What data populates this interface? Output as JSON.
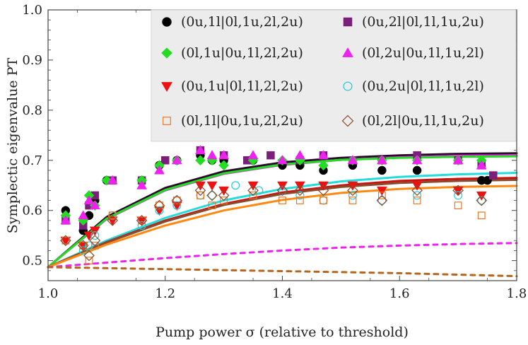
{
  "chart_data": {
    "type": "scatter",
    "xlabel": "Pump power σ (relative to threshold)",
    "ylabel": "Symplectic eigenvalue PT",
    "xlim": [
      1.0,
      1.8
    ],
    "ylim": [
      0.46,
      1.0
    ],
    "xticks": [
      "1.0",
      "1.2",
      "1.4",
      "1.6",
      "1.8"
    ],
    "yticks": [
      "0.5",
      "0.6",
      "0.7",
      "0.8",
      "0.9",
      "1.0"
    ],
    "grid": false,
    "legend_position": "top-right",
    "series": [
      {
        "name": "(0u,1l|0l,1u,2l,2u)",
        "marker": "circle",
        "filled": true,
        "color": "#000000",
        "points": [
          [
            1.03,
            0.6
          ],
          [
            1.06,
            0.56
          ],
          [
            1.07,
            0.59
          ],
          [
            1.08,
            0.62
          ],
          [
            1.1,
            0.66
          ],
          [
            1.16,
            0.66
          ],
          [
            1.19,
            0.69
          ],
          [
            1.22,
            0.7
          ],
          [
            1.26,
            0.71
          ],
          [
            1.28,
            0.7
          ],
          [
            1.3,
            0.7
          ],
          [
            1.35,
            0.7
          ],
          [
            1.4,
            0.69
          ],
          [
            1.43,
            0.69
          ],
          [
            1.47,
            0.68
          ],
          [
            1.52,
            0.69
          ],
          [
            1.57,
            0.68
          ],
          [
            1.63,
            0.68
          ],
          [
            1.74,
            0.66
          ],
          [
            1.75,
            0.66
          ]
        ]
      },
      {
        "name": "(0u,2l|0l,1l,1u,2u)",
        "marker": "square",
        "filled": true,
        "color": "#7B1F7B",
        "points": [
          [
            1.03,
            0.58
          ],
          [
            1.06,
            0.57
          ],
          [
            1.07,
            0.61
          ],
          [
            1.08,
            0.63
          ],
          [
            1.11,
            0.66
          ],
          [
            1.16,
            0.66
          ],
          [
            1.2,
            0.7
          ],
          [
            1.26,
            0.72
          ],
          [
            1.3,
            0.71
          ],
          [
            1.34,
            0.7
          ],
          [
            1.38,
            0.71
          ],
          [
            1.43,
            0.7
          ],
          [
            1.47,
            0.71
          ],
          [
            1.52,
            0.7
          ],
          [
            1.57,
            0.7
          ],
          [
            1.63,
            0.71
          ],
          [
            1.7,
            0.7
          ],
          [
            1.74,
            0.69
          ],
          [
            1.76,
            0.67
          ]
        ]
      },
      {
        "name": "(0l,1u|0u,1l,2l,2u)",
        "marker": "diamond",
        "filled": true,
        "color": "#22DD22",
        "points": [
          [
            1.03,
            0.59
          ],
          [
            1.06,
            0.58
          ],
          [
            1.07,
            0.63
          ],
          [
            1.08,
            0.61
          ],
          [
            1.1,
            0.66
          ],
          [
            1.16,
            0.66
          ],
          [
            1.19,
            0.69
          ],
          [
            1.22,
            0.7
          ],
          [
            1.26,
            0.7
          ],
          [
            1.28,
            0.7
          ],
          [
            1.3,
            0.69
          ],
          [
            1.35,
            0.7
          ],
          [
            1.4,
            0.7
          ],
          [
            1.43,
            0.7
          ],
          [
            1.47,
            0.69
          ],
          [
            1.52,
            0.7
          ],
          [
            1.57,
            0.7
          ],
          [
            1.63,
            0.7
          ],
          [
            1.7,
            0.7
          ],
          [
            1.74,
            0.7
          ]
        ]
      },
      {
        "name": "(0l,2u|0u,1l,1u,2l)",
        "marker": "triangle-up",
        "filled": true,
        "color": "#EE22EE",
        "points": [
          [
            1.03,
            0.58
          ],
          [
            1.06,
            0.59
          ],
          [
            1.07,
            0.62
          ],
          [
            1.08,
            0.61
          ],
          [
            1.11,
            0.66
          ],
          [
            1.16,
            0.65
          ],
          [
            1.19,
            0.68
          ],
          [
            1.22,
            0.7
          ],
          [
            1.26,
            0.72
          ],
          [
            1.28,
            0.71
          ],
          [
            1.3,
            0.71
          ],
          [
            1.35,
            0.71
          ],
          [
            1.4,
            0.7
          ],
          [
            1.43,
            0.71
          ],
          [
            1.47,
            0.71
          ],
          [
            1.52,
            0.7
          ],
          [
            1.57,
            0.7
          ],
          [
            1.63,
            0.7
          ],
          [
            1.7,
            0.7
          ],
          [
            1.74,
            0.69
          ]
        ]
      },
      {
        "name": "(0u,1u|0l,1l,2l,2u)",
        "marker": "triangle-down",
        "filled": true,
        "color": "#EE1111",
        "points": [
          [
            1.03,
            0.54
          ],
          [
            1.06,
            0.53
          ],
          [
            1.07,
            0.55
          ],
          [
            1.08,
            0.56
          ],
          [
            1.11,
            0.58
          ],
          [
            1.16,
            0.58
          ],
          [
            1.19,
            0.6
          ],
          [
            1.22,
            0.61
          ],
          [
            1.26,
            0.65
          ],
          [
            1.28,
            0.65
          ],
          [
            1.3,
            0.64
          ],
          [
            1.35,
            0.65
          ],
          [
            1.4,
            0.65
          ],
          [
            1.43,
            0.65
          ],
          [
            1.47,
            0.65
          ],
          [
            1.52,
            0.65
          ],
          [
            1.57,
            0.64
          ],
          [
            1.63,
            0.65
          ],
          [
            1.7,
            0.64
          ],
          [
            1.74,
            0.63
          ]
        ]
      },
      {
        "name": "(0u,2u|0l,1l,1u,2l)",
        "marker": "circle",
        "filled": false,
        "color": "#22CCDD",
        "points": [
          [
            1.03,
            0.54
          ],
          [
            1.06,
            0.52
          ],
          [
            1.07,
            0.53
          ],
          [
            1.08,
            0.55
          ],
          [
            1.11,
            0.59
          ],
          [
            1.16,
            0.57
          ],
          [
            1.19,
            0.6
          ],
          [
            1.22,
            0.61
          ],
          [
            1.26,
            0.63
          ],
          [
            1.28,
            0.63
          ],
          [
            1.32,
            0.65
          ],
          [
            1.36,
            0.64
          ],
          [
            1.4,
            0.64
          ],
          [
            1.43,
            0.63
          ],
          [
            1.47,
            0.62
          ],
          [
            1.52,
            0.63
          ],
          [
            1.57,
            0.62
          ],
          [
            1.63,
            0.63
          ],
          [
            1.7,
            0.63
          ],
          [
            1.74,
            0.62
          ]
        ]
      },
      {
        "name": "(0l,1l|0u,1u,2l,2u)",
        "marker": "square",
        "filled": false,
        "color": "#EE7722",
        "points": [
          [
            1.03,
            0.54
          ],
          [
            1.06,
            0.53
          ],
          [
            1.07,
            0.5
          ],
          [
            1.08,
            0.53
          ],
          [
            1.11,
            0.59
          ],
          [
            1.16,
            0.58
          ],
          [
            1.19,
            0.61
          ],
          [
            1.22,
            0.62
          ],
          [
            1.26,
            0.63
          ],
          [
            1.28,
            0.61
          ],
          [
            1.3,
            0.62
          ],
          [
            1.35,
            0.63
          ],
          [
            1.4,
            0.62
          ],
          [
            1.43,
            0.62
          ],
          [
            1.47,
            0.62
          ],
          [
            1.52,
            0.62
          ],
          [
            1.57,
            0.63
          ],
          [
            1.63,
            0.62
          ],
          [
            1.7,
            0.61
          ],
          [
            1.74,
            0.59
          ]
        ]
      },
      {
        "name": "(0l,2l|0u,1l,1u,2u)",
        "marker": "diamond",
        "filled": false,
        "color": "#8B4A2B",
        "points": [
          [
            1.03,
            0.54
          ],
          [
            1.06,
            0.53
          ],
          [
            1.07,
            0.51
          ],
          [
            1.08,
            0.54
          ],
          [
            1.11,
            0.58
          ],
          [
            1.16,
            0.58
          ],
          [
            1.19,
            0.61
          ],
          [
            1.22,
            0.62
          ],
          [
            1.26,
            0.64
          ],
          [
            1.28,
            0.63
          ],
          [
            1.3,
            0.63
          ],
          [
            1.35,
            0.64
          ],
          [
            1.4,
            0.64
          ],
          [
            1.43,
            0.64
          ],
          [
            1.47,
            0.64
          ],
          [
            1.52,
            0.64
          ],
          [
            1.57,
            0.62
          ],
          [
            1.63,
            0.64
          ],
          [
            1.7,
            0.64
          ],
          [
            1.74,
            0.62
          ]
        ]
      }
    ],
    "curves": [
      {
        "style": "solid",
        "color": "#2A0A2A",
        "points": [
          [
            1.0,
            0.487
          ],
          [
            1.1,
            0.587
          ],
          [
            1.2,
            0.645
          ],
          [
            1.3,
            0.678
          ],
          [
            1.4,
            0.696
          ],
          [
            1.5,
            0.705
          ],
          [
            1.6,
            0.71
          ],
          [
            1.7,
            0.713
          ],
          [
            1.8,
            0.714
          ]
        ]
      },
      {
        "style": "solid",
        "color": "#EE22EE",
        "points": [
          [
            1.0,
            0.487
          ],
          [
            1.1,
            0.583
          ],
          [
            1.2,
            0.64
          ],
          [
            1.3,
            0.673
          ],
          [
            1.4,
            0.691
          ],
          [
            1.5,
            0.701
          ],
          [
            1.6,
            0.706
          ],
          [
            1.7,
            0.709
          ],
          [
            1.8,
            0.71
          ]
        ]
      },
      {
        "style": "solid",
        "color": "#22DD22",
        "points": [
          [
            1.0,
            0.487
          ],
          [
            1.1,
            0.584
          ],
          [
            1.2,
            0.641
          ],
          [
            1.3,
            0.674
          ],
          [
            1.4,
            0.692
          ],
          [
            1.5,
            0.701
          ],
          [
            1.6,
            0.705
          ],
          [
            1.7,
            0.707
          ],
          [
            1.8,
            0.708
          ]
        ]
      },
      {
        "style": "solid",
        "color": "#22DDDD",
        "points": [
          [
            1.0,
            0.487
          ],
          [
            1.1,
            0.54
          ],
          [
            1.2,
            0.585
          ],
          [
            1.3,
            0.62
          ],
          [
            1.4,
            0.643
          ],
          [
            1.5,
            0.658
          ],
          [
            1.6,
            0.667
          ],
          [
            1.7,
            0.672
          ],
          [
            1.8,
            0.675
          ]
        ]
      },
      {
        "style": "solid",
        "color": "#CC1111",
        "points": [
          [
            1.0,
            0.487
          ],
          [
            1.1,
            0.537
          ],
          [
            1.2,
            0.58
          ],
          [
            1.3,
            0.613
          ],
          [
            1.4,
            0.636
          ],
          [
            1.5,
            0.65
          ],
          [
            1.6,
            0.659
          ],
          [
            1.7,
            0.663
          ],
          [
            1.8,
            0.665
          ]
        ]
      },
      {
        "style": "solid",
        "color": "#8B4A2B",
        "points": [
          [
            1.0,
            0.487
          ],
          [
            1.1,
            0.536
          ],
          [
            1.2,
            0.578
          ],
          [
            1.3,
            0.611
          ],
          [
            1.4,
            0.633
          ],
          [
            1.5,
            0.647
          ],
          [
            1.6,
            0.655
          ],
          [
            1.7,
            0.659
          ],
          [
            1.8,
            0.661
          ]
        ]
      },
      {
        "style": "solid",
        "color": "#FF8811",
        "points": [
          [
            1.0,
            0.487
          ],
          [
            1.1,
            0.532
          ],
          [
            1.2,
            0.57
          ],
          [
            1.3,
            0.6
          ],
          [
            1.4,
            0.621
          ],
          [
            1.5,
            0.635
          ],
          [
            1.6,
            0.643
          ],
          [
            1.7,
            0.647
          ],
          [
            1.8,
            0.649
          ]
        ]
      },
      {
        "style": "dashed",
        "color": "#EE22EE",
        "points": [
          [
            1.0,
            0.487
          ],
          [
            1.1,
            0.496
          ],
          [
            1.2,
            0.505
          ],
          [
            1.3,
            0.513
          ],
          [
            1.4,
            0.52
          ],
          [
            1.5,
            0.526
          ],
          [
            1.6,
            0.53
          ],
          [
            1.7,
            0.533
          ],
          [
            1.8,
            0.535
          ]
        ]
      },
      {
        "style": "dashed",
        "color": "#B5651D",
        "points": [
          [
            1.0,
            0.487
          ],
          [
            1.1,
            0.485
          ],
          [
            1.2,
            0.483
          ],
          [
            1.3,
            0.481
          ],
          [
            1.4,
            0.479
          ],
          [
            1.5,
            0.477
          ],
          [
            1.6,
            0.475
          ],
          [
            1.7,
            0.472
          ],
          [
            1.8,
            0.469
          ]
        ]
      }
    ]
  }
}
